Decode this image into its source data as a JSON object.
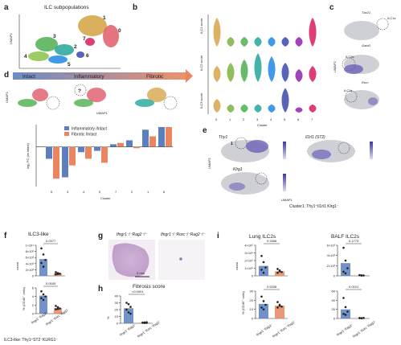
{
  "panels": {
    "a": {
      "letter": "a",
      "title": "ILC subpopulations",
      "xlabel": "UMAP1",
      "ylabel": "UMAP2",
      "cluster_labels": [
        "1",
        "7",
        "0",
        "3",
        "2",
        "4",
        "5",
        "6"
      ]
    },
    "b": {
      "letter": "b",
      "ylabels": [
        "ILC1 score",
        "ILC2 score",
        "ILC3 score"
      ],
      "xlabel": "Cluster",
      "clusters": [
        "0",
        "1",
        "2",
        "3",
        "4",
        "5",
        "6",
        "7"
      ],
      "colors": [
        "#d6a64b",
        "#7cb342",
        "#4caf50",
        "#26a69a",
        "#1e88e5",
        "#3949ab",
        "#8e24aa",
        "#d81b60"
      ]
    },
    "c": {
      "letter": "c",
      "ylabel": "UMAP2",
      "genes": [
        "Tbx21",
        "Gata3",
        "Rorc"
      ],
      "insets": [
        "ILC1s",
        "ILC2s",
        "ILC3s"
      ]
    },
    "d": {
      "letter": "d",
      "conditions": [
        "Intact",
        "Inflammatory",
        "Fibrotic"
      ],
      "ylabel": "UMAP2",
      "xlabel_umap": "UMAP1",
      "question": "?"
    },
    "e": {
      "letter": "e",
      "genes": [
        "Thy1",
        "Il1rl1 (ST2)",
        "Klrg1"
      ],
      "xlabel": "UMAP1",
      "ylabel": "UMAP2",
      "marker": "1",
      "caption": "Cluster1: Thy1⁺Il1rl1 Klrg1⁻"
    },
    "f": {
      "letter": "f",
      "title": "ILC3-like",
      "ylabel_top": "count",
      "ylabel_bottom": "% (CD45⁺ cells)",
      "p_top": "0.0377",
      "p_bottom": "0.0005",
      "yticks_top": [
        "0",
        "2×10³",
        "4×10³",
        "6×10³",
        "8×10³",
        "1×10⁴"
      ],
      "yticks_bottom": [
        "0",
        "2",
        "4",
        "6"
      ],
      "groups": [
        "Ifngr1⁻Rag2⁻",
        "Ifngr1⁻Rorc⁻Rag2⁻"
      ],
      "footnote": "ILC3-like: Thy1⁺ST2⁻KLRG1⁻",
      "colors": [
        "#5b7fc0",
        "#e9855f"
      ]
    },
    "g": {
      "letter": "g",
      "labels": [
        "Ifngr1⁻/⁻Rag2⁻/⁻",
        "Ifngr1⁻/⁻Rorc⁻/⁻Rag2⁻/⁻"
      ],
      "scale": "3 mm"
    },
    "h": {
      "letter": "h",
      "title": "Fibrosis score",
      "ylabel": "%",
      "p": "<0.0001",
      "yticks": [
        "0",
        "10",
        "20",
        "30",
        "40"
      ],
      "groups": [
        "Ifngr1⁻Rag2⁻",
        "Ifngr1⁻Rorc⁻Rag2⁻"
      ]
    },
    "i": {
      "letter": "i",
      "titles": [
        "Lung ILC2s",
        "BALF ILC2s"
      ],
      "ylabel_top": "count",
      "ylabel_bottom": "% (CD45⁺ cells)",
      "p_values": [
        "0.3366",
        "0.1773",
        "0.5206",
        "0.0101"
      ],
      "yticks_lung_top": [
        "0",
        "1×10⁵",
        "2×10⁵",
        "3×10⁵",
        "4×10⁵"
      ],
      "yticks_balf_top": [
        "0",
        "2×10³",
        "4×10³",
        "6×10³"
      ],
      "yticks_lung_bottom": [
        "0",
        "10",
        "20",
        "30"
      ],
      "yticks_balf_bottom": [
        "0",
        "20",
        "40",
        "60"
      ],
      "groups": [
        "Ifngr1⁻Rag2⁻",
        "Ifngr1⁻Rorc⁻Rag2⁻"
      ]
    }
  },
  "chart_data": [
    {
      "type": "bar",
      "panel": "d",
      "xlabel": "Cluster",
      "ylabel": "log₂ FC (vs intact)",
      "categories": [
        "5",
        "3",
        "4",
        "0",
        "7",
        "2",
        "1",
        "6"
      ],
      "ylim": [
        -3,
        1.5
      ],
      "series": [
        {
          "name": "Inflammatory /Intact",
          "color": "#5b7fc0",
          "values": [
            -0.9,
            -2.3,
            -0.4,
            -0.3,
            0.2,
            0.5,
            1.3,
            1.5
          ]
        },
        {
          "name": "Fibrotic /Intact",
          "color": "#e9855f",
          "values": [
            -2.4,
            -1.4,
            -0.9,
            -1.2,
            0.3,
            -0.1,
            0.8,
            1.5
          ]
        }
      ]
    },
    {
      "type": "bar",
      "panel": "f-count",
      "ylabel": "count",
      "categories": [
        "Ifngr1⁻Rag2⁻",
        "Ifngr1⁻Rorc⁻Rag2⁻"
      ],
      "values": [
        5500,
        800
      ],
      "ylim": [
        0,
        10000
      ],
      "points": [
        [
          9000,
          7000,
          5200,
          4200,
          3000
        ],
        [
          1200,
          900,
          700,
          500,
          600
        ]
      ]
    },
    {
      "type": "bar",
      "panel": "f-pct",
      "ylabel": "% (CD45⁺ cells)",
      "categories": [
        "Ifngr1⁻Rag2⁻",
        "Ifngr1⁻Rorc⁻Rag2⁻"
      ],
      "values": [
        4.2,
        1.3
      ],
      "ylim": [
        0,
        6
      ],
      "points": [
        [
          5.2,
          4.5,
          4.0,
          3.6,
          3.2
        ],
        [
          1.8,
          1.5,
          1.2,
          1.0,
          1.1
        ]
      ]
    },
    {
      "type": "bar",
      "panel": "h",
      "ylabel": "%",
      "categories": [
        "Ifngr1⁻Rag2⁻",
        "Ifngr1⁻Rorc⁻Rag2⁻"
      ],
      "values": [
        22,
        1
      ],
      "ylim": [
        0,
        40
      ],
      "points": [
        [
          30,
          28,
          24,
          20,
          16,
          14
        ],
        [
          1,
          0.5,
          1.5,
          0.8,
          1.2,
          0.6
        ]
      ]
    },
    {
      "type": "bar",
      "panel": "i-lung-count",
      "ylabel": "count",
      "categories": [
        "Ifngr1⁻Rag2⁻",
        "Ifngr1⁻Rorc⁻Rag2⁻"
      ],
      "values": [
        130000,
        60000
      ],
      "ylim": [
        0,
        400000
      ],
      "points": [
        [
          260000,
          180000,
          110000,
          80000,
          40000
        ],
        [
          90000,
          70000,
          50000,
          40000,
          60000
        ]
      ]
    },
    {
      "type": "bar",
      "panel": "i-balf-count",
      "ylabel": "count",
      "categories": [
        "Ifngr1⁻Rag2⁻",
        "Ifngr1⁻Rorc⁻Rag2⁻"
      ],
      "values": [
        2500,
        100
      ],
      "ylim": [
        0,
        6000
      ],
      "points": [
        [
          5500,
          3000,
          1500,
          800,
          500
        ],
        [
          150,
          100,
          80,
          120,
          60
        ]
      ]
    },
    {
      "type": "bar",
      "panel": "i-lung-pct",
      "ylabel": "% (CD45⁺ cells)",
      "categories": [
        "Ifngr1⁻Rag2⁻",
        "Ifngr1⁻Rorc⁻Rag2⁻"
      ],
      "values": [
        16,
        14
      ],
      "ylim": [
        0,
        30
      ],
      "points": [
        [
          24,
          19,
          15,
          12,
          10
        ],
        [
          18,
          15,
          13,
          12,
          14
        ]
      ]
    },
    {
      "type": "bar",
      "panel": "i-balf-pct",
      "ylabel": "% (CD45⁺ cells)",
      "categories": [
        "Ifngr1⁻Rag2⁻",
        "Ifngr1⁻Rorc⁻Rag2⁻"
      ],
      "values": [
        20,
        1
      ],
      "ylim": [
        0,
        60
      ],
      "points": [
        [
          45,
          25,
          15,
          10,
          8
        ],
        [
          1,
          0.5,
          1.2,
          0.8,
          0.6
        ]
      ]
    }
  ]
}
